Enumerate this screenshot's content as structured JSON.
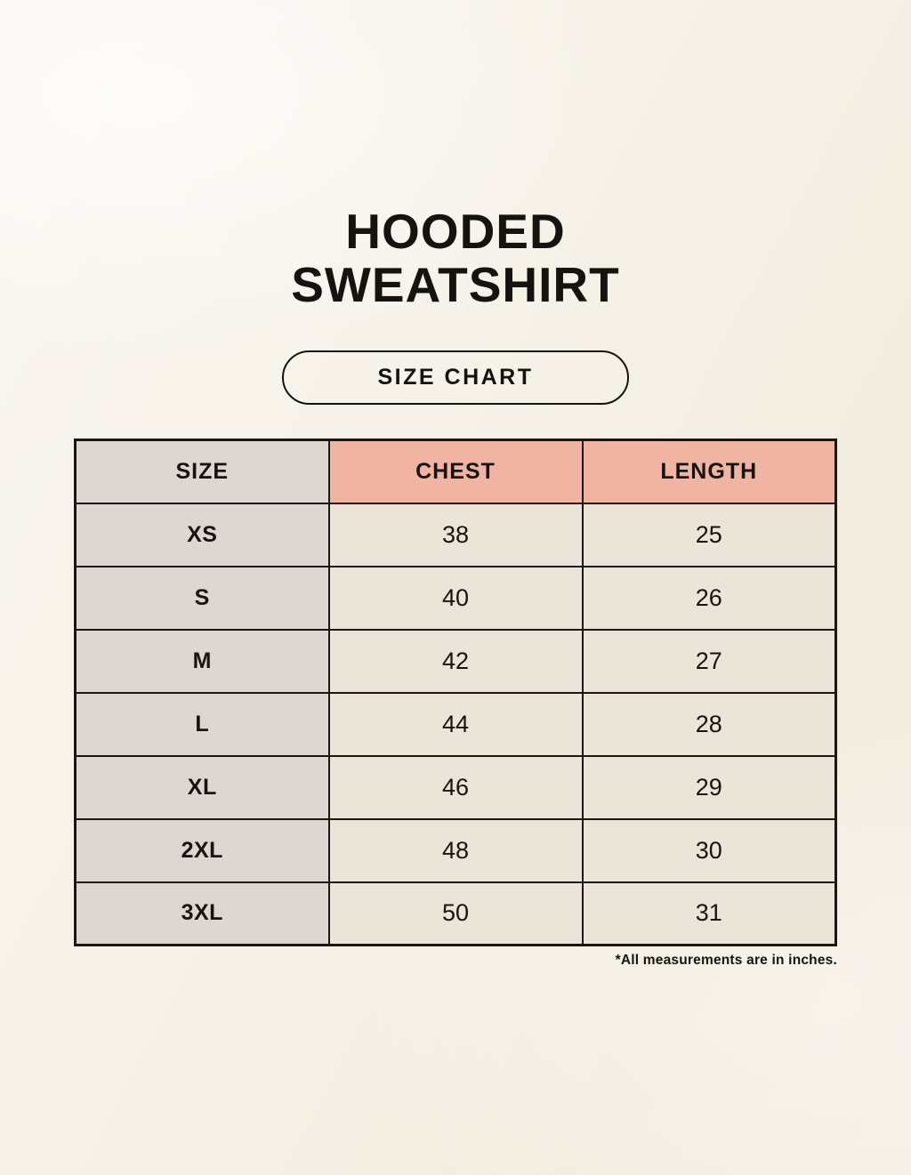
{
  "title": {
    "line1": "HOODED",
    "line2": "SWEATSHIRT"
  },
  "pill": {
    "label": "SIZE CHART"
  },
  "size_chart": {
    "columns": [
      "SIZE",
      "CHEST",
      "LENGTH"
    ],
    "rows": [
      {
        "size": "XS",
        "chest": "38",
        "length": "25"
      },
      {
        "size": "S",
        "chest": "40",
        "length": "26"
      },
      {
        "size": "M",
        "chest": "42",
        "length": "27"
      },
      {
        "size": "L",
        "chest": "44",
        "length": "28"
      },
      {
        "size": "XL",
        "chest": "46",
        "length": "29"
      },
      {
        "size": "2XL",
        "chest": "48",
        "length": "30"
      },
      {
        "size": "3XL",
        "chest": "50",
        "length": "31"
      }
    ],
    "footnote": "*All measurements are in inches.",
    "units": "inches"
  },
  "colors": {
    "page_background": "#f7f2e9",
    "header_accent": "#f0b4a3",
    "size_column": "#ddd6d1",
    "cell_background": "#eae4d9",
    "table_border": "#1a1713",
    "text": "#15130f"
  }
}
